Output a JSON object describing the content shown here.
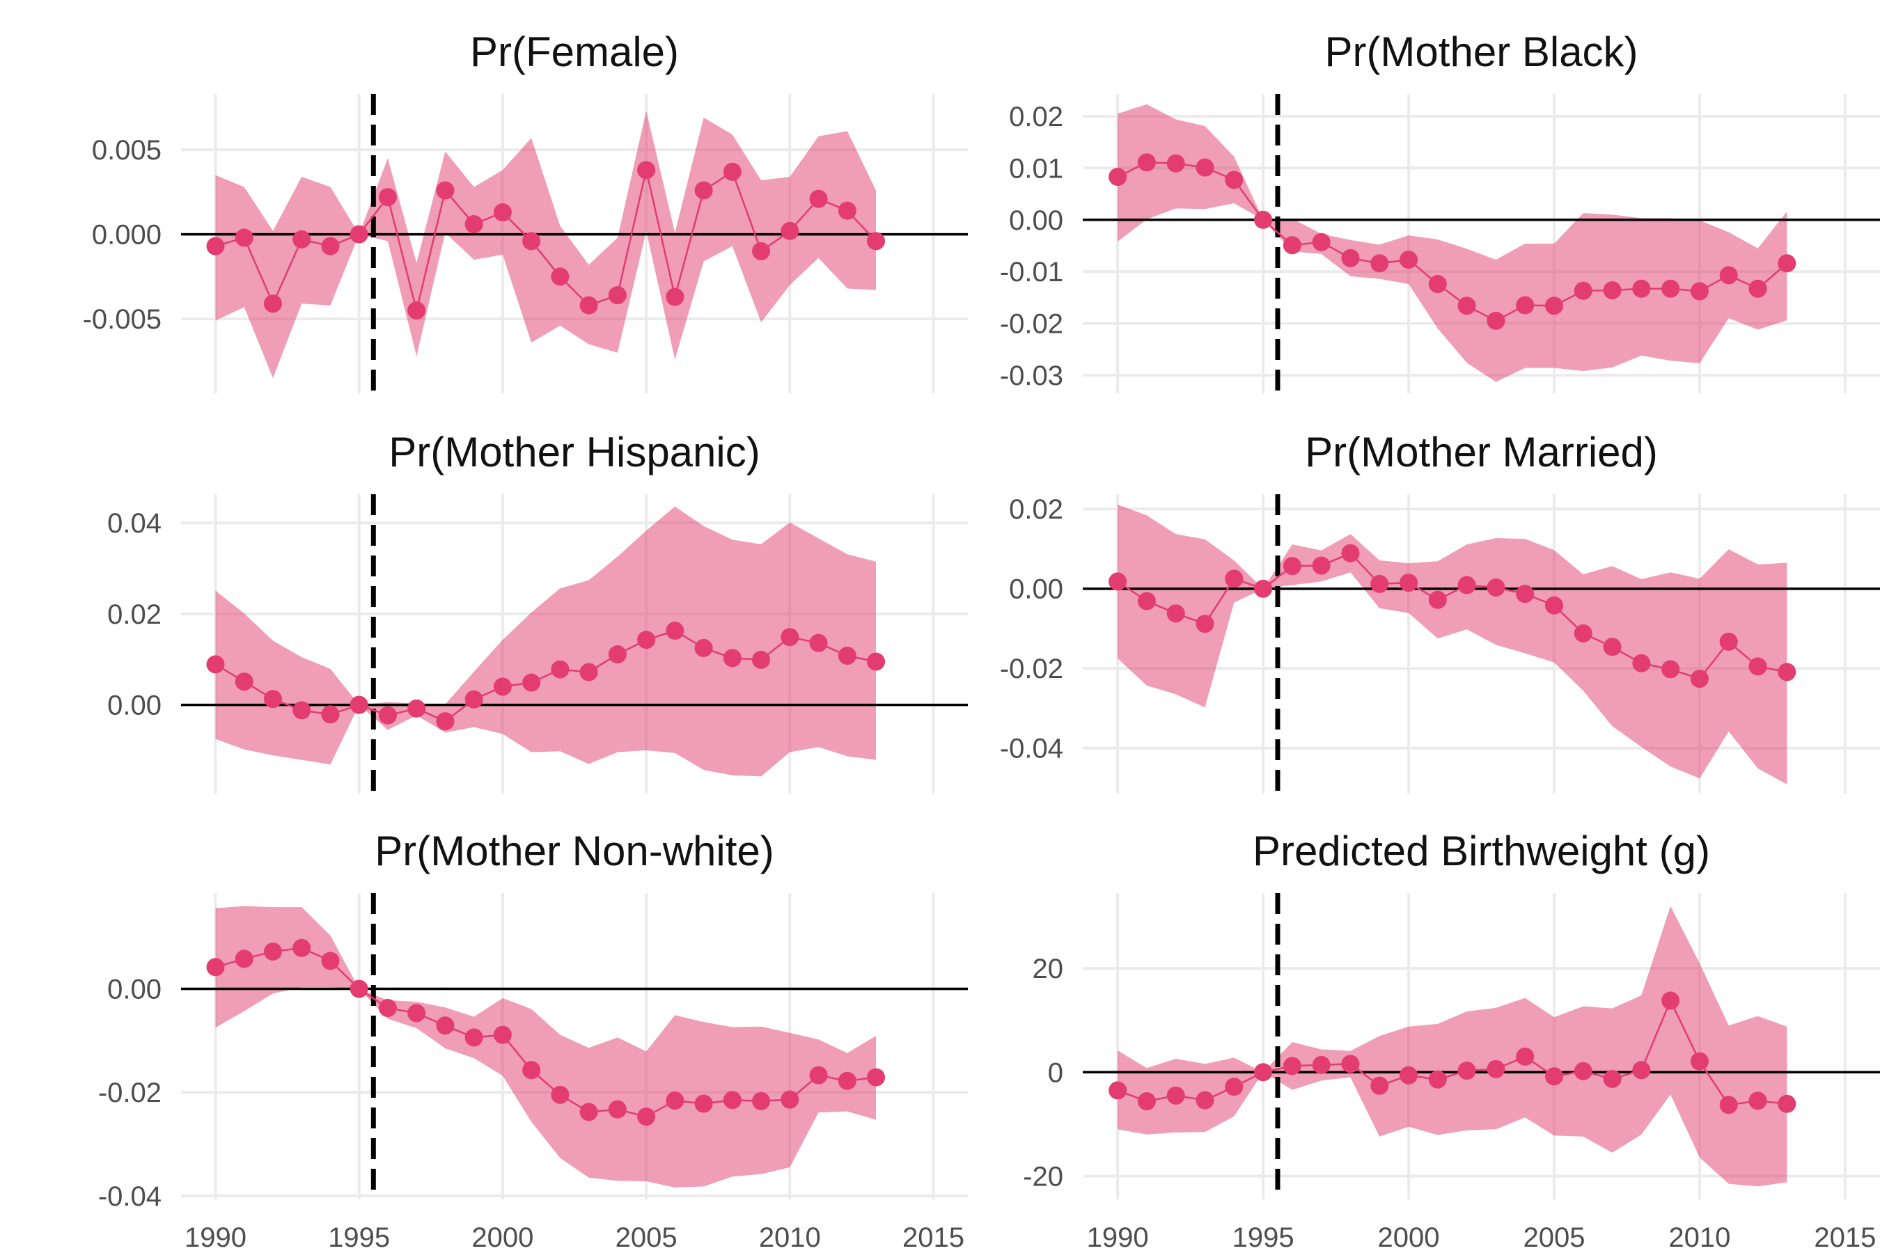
{
  "colors": {
    "band": "#E23C70",
    "line": "#E23C70",
    "point": "#E23C70",
    "grid": "#EBEBEB"
  },
  "chart_data": [
    {
      "type": "line",
      "title": "Pr(Female)",
      "x": [
        1990,
        1991,
        1992,
        1993,
        1994,
        1995,
        1996,
        1997,
        1998,
        1999,
        2000,
        2001,
        2002,
        2003,
        2004,
        2005,
        2006,
        2007,
        2008,
        2009,
        2010,
        2011,
        2012,
        2013
      ],
      "values": [
        -0.0007,
        -0.0002,
        -0.0041,
        -0.0003,
        -0.0007,
        0.0,
        0.0022,
        -0.0045,
        0.0026,
        0.0006,
        0.0013,
        -0.0004,
        -0.0025,
        -0.0042,
        -0.0036,
        0.0038,
        -0.0037,
        0.0026,
        0.0037,
        -0.001,
        0.0002,
        0.0021,
        0.0014,
        -0.0004
      ],
      "lower": [
        -0.0051,
        -0.0043,
        -0.0085,
        -0.0041,
        -0.0042,
        0.0,
        -0.0004,
        -0.0072,
        0.0001,
        -0.0015,
        -0.0012,
        -0.0064,
        -0.0054,
        -0.0065,
        -0.007,
        0.0002,
        -0.0074,
        -0.0016,
        -0.0007,
        -0.0052,
        -0.003,
        -0.0014,
        -0.0032,
        -0.0033
      ],
      "upper": [
        0.0035,
        0.0028,
        0.0002,
        0.0034,
        0.0028,
        0.0,
        0.0045,
        -0.0017,
        0.0049,
        0.0028,
        0.0038,
        0.0057,
        0.0005,
        -0.0018,
        -0.0002,
        0.0073,
        0.0001,
        0.0069,
        0.0059,
        0.0032,
        0.0034,
        0.0058,
        0.0061,
        0.0026
      ],
      "xlim": [
        1988.8,
        2016.2
      ],
      "ylim": [
        -0.0094,
        0.0083
      ],
      "xticks": [
        1990,
        1995,
        2000,
        2005,
        2010,
        2015
      ],
      "xtick_labels": [],
      "yticks": [
        -0.005,
        0.0,
        0.005
      ],
      "ytick_labels": [
        "-0.005",
        "0.000",
        "0.005"
      ],
      "vline": 1995.5,
      "hline": 0
    },
    {
      "type": "line",
      "title": "Pr(Mother Black)",
      "x": [
        1990,
        1991,
        1992,
        1993,
        1994,
        1995,
        1996,
        1997,
        1998,
        1999,
        2000,
        2001,
        2002,
        2003,
        2004,
        2005,
        2006,
        2007,
        2008,
        2009,
        2010,
        2011,
        2012,
        2013
      ],
      "values": [
        0.0083,
        0.0111,
        0.0109,
        0.0101,
        0.0077,
        0.0,
        -0.0049,
        -0.0043,
        -0.0074,
        -0.0084,
        -0.0077,
        -0.0124,
        -0.0166,
        -0.0195,
        -0.0165,
        -0.0166,
        -0.0137,
        -0.0136,
        -0.0133,
        -0.0133,
        -0.0138,
        -0.0107,
        -0.0133,
        -0.0084
      ],
      "lower": [
        -0.0042,
        0.0001,
        0.0022,
        0.0021,
        0.0032,
        0.0,
        -0.0061,
        -0.0066,
        -0.0109,
        -0.0114,
        -0.0124,
        -0.021,
        -0.0276,
        -0.0313,
        -0.0286,
        -0.0286,
        -0.0292,
        -0.0285,
        -0.0262,
        -0.0272,
        -0.0277,
        -0.019,
        -0.0212,
        -0.0194
      ],
      "upper": [
        0.0205,
        0.0223,
        0.0194,
        0.0181,
        0.0122,
        0.0,
        0.0002,
        -0.0027,
        -0.0039,
        -0.0048,
        -0.003,
        -0.0038,
        -0.0056,
        -0.0077,
        -0.0046,
        -0.0046,
        0.0013,
        0.001,
        0.0003,
        0.0003,
        -0.0001,
        -0.0024,
        -0.0055,
        0.0016
      ],
      "xlim": [
        1988.8,
        2016.2
      ],
      "ylim": [
        -0.0335,
        0.0243
      ],
      "xticks": [
        1990,
        1995,
        2000,
        2005,
        2010,
        2015
      ],
      "xtick_labels": [],
      "yticks": [
        -0.03,
        -0.02,
        -0.01,
        0.0,
        0.01,
        0.02
      ],
      "ytick_labels": [
        "-0.03",
        "-0.02",
        "-0.01",
        "0.00",
        "0.01",
        "0.02"
      ],
      "vline": 1995.5,
      "hline": 0
    },
    {
      "type": "line",
      "title": "Pr(Mother Hispanic)",
      "x": [
        1990,
        1991,
        1992,
        1993,
        1994,
        1995,
        1996,
        1997,
        1998,
        1999,
        2000,
        2001,
        2002,
        2003,
        2004,
        2005,
        2006,
        2007,
        2008,
        2009,
        2010,
        2011,
        2012,
        2013
      ],
      "values": [
        0.0089,
        0.0051,
        0.0013,
        -0.0012,
        -0.0021,
        0.0,
        -0.0023,
        -0.0008,
        -0.0036,
        0.0012,
        0.004,
        0.0049,
        0.0078,
        0.0072,
        0.0111,
        0.0143,
        0.0163,
        0.0125,
        0.0103,
        0.0099,
        0.0149,
        0.0136,
        0.0108,
        0.0095
      ],
      "lower": [
        -0.0075,
        -0.0098,
        -0.0111,
        -0.0121,
        -0.0131,
        0.0,
        -0.0055,
        -0.0023,
        -0.0061,
        -0.0049,
        -0.0064,
        -0.0104,
        -0.0102,
        -0.013,
        -0.0104,
        -0.01,
        -0.0106,
        -0.0143,
        -0.0155,
        -0.0157,
        -0.0104,
        -0.0093,
        -0.0113,
        -0.0121
      ],
      "upper": [
        0.0251,
        0.0201,
        0.0141,
        0.0105,
        0.0079,
        0.0,
        0.0006,
        0.0003,
        0.0001,
        0.0073,
        0.0143,
        0.0203,
        0.0256,
        0.0274,
        0.0326,
        0.0383,
        0.0436,
        0.0393,
        0.0363,
        0.0353,
        0.0401,
        0.0366,
        0.0331,
        0.0315
      ],
      "xlim": [
        1988.8,
        2016.2
      ],
      "ylim": [
        -0.0195,
        0.0463
      ],
      "xticks": [
        1990,
        1995,
        2000,
        2005,
        2010,
        2015
      ],
      "xtick_labels": [],
      "yticks": [
        0.0,
        0.02,
        0.04
      ],
      "ytick_labels": [
        "0.00",
        "0.02",
        "0.04"
      ],
      "vline": 1995.5,
      "hline": 0
    },
    {
      "type": "line",
      "title": "Pr(Mother Married)",
      "x": [
        1990,
        1991,
        1992,
        1993,
        1994,
        1995,
        1996,
        1997,
        1998,
        1999,
        2000,
        2001,
        2002,
        2003,
        2004,
        2005,
        2006,
        2007,
        2008,
        2009,
        2010,
        2011,
        2012,
        2013
      ],
      "values": [
        0.0018,
        -0.0031,
        -0.0062,
        -0.0088,
        0.0025,
        0.0,
        0.0057,
        0.0058,
        0.0089,
        0.0012,
        0.0015,
        -0.0028,
        0.0009,
        0.0003,
        -0.0013,
        -0.0042,
        -0.0112,
        -0.0146,
        -0.0187,
        -0.0202,
        -0.0226,
        -0.0133,
        -0.0195,
        -0.0209
      ],
      "lower": [
        -0.0175,
        -0.0243,
        -0.0265,
        -0.0298,
        -0.0035,
        0.0,
        0.0009,
        0.0018,
        0.0041,
        -0.0049,
        -0.0061,
        -0.0125,
        -0.0102,
        -0.0141,
        -0.0162,
        -0.0185,
        -0.0256,
        -0.0345,
        -0.0397,
        -0.0446,
        -0.0476,
        -0.0358,
        -0.0451,
        -0.0491
      ],
      "upper": [
        0.0211,
        0.0184,
        0.0137,
        0.0124,
        0.0071,
        0.0,
        0.0111,
        0.0096,
        0.0137,
        0.0071,
        0.0064,
        0.0069,
        0.0111,
        0.0127,
        0.0125,
        0.0097,
        0.0036,
        0.0057,
        0.0024,
        0.0041,
        0.0025,
        0.0099,
        0.0061,
        0.0065
      ],
      "xlim": [
        1988.8,
        2016.2
      ],
      "ylim": [
        -0.0514,
        0.0237
      ],
      "xticks": [
        1990,
        1995,
        2000,
        2005,
        2010,
        2015
      ],
      "xtick_labels": [],
      "yticks": [
        -0.04,
        -0.02,
        0.0,
        0.02
      ],
      "ytick_labels": [
        "-0.04",
        "-0.02",
        "0.00",
        "0.02"
      ],
      "vline": 1995.5,
      "hline": 0
    },
    {
      "type": "line",
      "title": "Pr(Mother Non-white)",
      "x": [
        1990,
        1991,
        1992,
        1993,
        1994,
        1995,
        1996,
        1997,
        1998,
        1999,
        2000,
        2001,
        2002,
        2003,
        2004,
        2005,
        2006,
        2007,
        2008,
        2009,
        2010,
        2011,
        2012,
        2013
      ],
      "values": [
        0.0042,
        0.0058,
        0.0072,
        0.0079,
        0.0054,
        0.0,
        -0.0037,
        -0.0047,
        -0.0071,
        -0.0094,
        -0.0089,
        -0.0157,
        -0.0205,
        -0.0238,
        -0.0233,
        -0.0247,
        -0.0216,
        -0.0222,
        -0.0215,
        -0.0217,
        -0.0214,
        -0.0167,
        -0.0178,
        -0.0171
      ],
      "lower": [
        -0.0075,
        -0.0043,
        -0.0009,
        0.0003,
        0.0003,
        0.0,
        -0.0058,
        -0.0076,
        -0.0115,
        -0.0134,
        -0.0168,
        -0.0257,
        -0.0327,
        -0.0365,
        -0.0371,
        -0.0372,
        -0.0384,
        -0.0382,
        -0.0363,
        -0.0358,
        -0.0345,
        -0.0239,
        -0.0237,
        -0.0253
      ],
      "upper": [
        0.0156,
        0.016,
        0.0158,
        0.0158,
        0.0103,
        0.0,
        -0.0022,
        -0.0025,
        -0.0036,
        -0.0054,
        -0.0018,
        -0.0039,
        -0.0089,
        -0.0114,
        -0.0094,
        -0.0121,
        -0.0051,
        -0.0064,
        -0.0074,
        -0.0073,
        -0.0085,
        -0.0098,
        -0.0124,
        -0.0091
      ],
      "xlim": [
        1988.8,
        2016.2
      ],
      "ylim": [
        -0.0407,
        0.0185
      ],
      "xticks": [
        1990,
        1995,
        2000,
        2005,
        2010,
        2015
      ],
      "xtick_labels": [
        "1990",
        "1995",
        "2000",
        "2005",
        "2010",
        "2015"
      ],
      "yticks": [
        -0.04,
        -0.02,
        0.0
      ],
      "ytick_labels": [
        "-0.04",
        "-0.02",
        "0.00"
      ],
      "vline": 1995.5,
      "hline": 0
    },
    {
      "type": "line",
      "title": "Predicted Birthweight (g)",
      "x": [
        1990,
        1991,
        1992,
        1993,
        1994,
        1995,
        1996,
        1997,
        1998,
        1999,
        2000,
        2001,
        2002,
        2003,
        2004,
        2005,
        2006,
        2007,
        2008,
        2009,
        2010,
        2011,
        2012,
        2013
      ],
      "values": [
        -3.5,
        -5.6,
        -4.5,
        -5.4,
        -2.8,
        0.0,
        1.2,
        1.4,
        1.6,
        -2.6,
        -0.6,
        -1.4,
        0.3,
        0.6,
        3.0,
        -0.8,
        0.2,
        -1.3,
        0.4,
        13.8,
        2.1,
        -6.3,
        -5.5,
        -6.1
      ],
      "lower": [
        -11.0,
        -12.0,
        -11.6,
        -11.5,
        -8.5,
        0.0,
        -3.4,
        -1.6,
        -1.0,
        -12.4,
        -10.5,
        -12.1,
        -11.2,
        -11.0,
        -8.7,
        -12.2,
        -12.4,
        -15.5,
        -12.0,
        -4.3,
        -16.4,
        -21.5,
        -22.0,
        -21.2
      ],
      "upper": [
        4.2,
        0.8,
        2.6,
        1.6,
        2.8,
        0.0,
        5.8,
        4.4,
        4.1,
        7.0,
        8.8,
        9.3,
        11.7,
        12.4,
        14.3,
        10.6,
        12.7,
        12.3,
        14.8,
        32.0,
        21.0,
        9.0,
        10.8,
        8.8
      ],
      "xlim": [
        1988.8,
        2016.2
      ],
      "ylim": [
        -24.5,
        34.5
      ],
      "xticks": [
        1990,
        1995,
        2000,
        2005,
        2010,
        2015
      ],
      "xtick_labels": [
        "1990",
        "1995",
        "2000",
        "2005",
        "2010",
        "2015"
      ],
      "yticks": [
        -20,
        0,
        20
      ],
      "ytick_labels": [
        "-20",
        "0",
        "20"
      ],
      "vline": 1995.5,
      "hline": 0
    }
  ]
}
